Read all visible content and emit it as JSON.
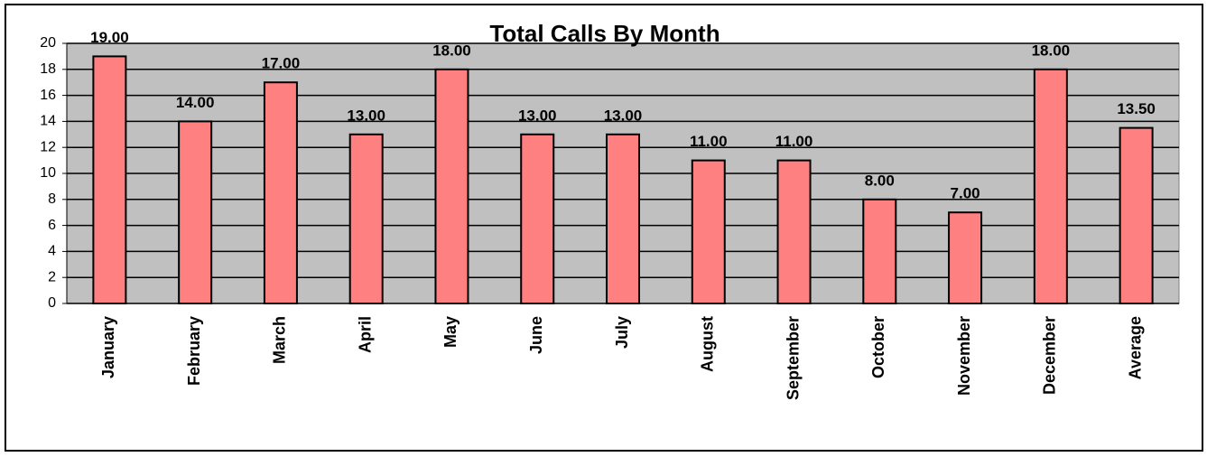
{
  "chart_data": {
    "type": "bar",
    "title": "Total Calls By Month",
    "categories": [
      "January",
      "February",
      "March",
      "April",
      "May",
      "June",
      "July",
      "August",
      "September",
      "October",
      "November",
      "December",
      "Average"
    ],
    "values": [
      19,
      14,
      17,
      13,
      18,
      13,
      13,
      11,
      11,
      8,
      7,
      18,
      13.5
    ],
    "value_labels": [
      "19.00",
      "14.00",
      "17.00",
      "13.00",
      "18.00",
      "13.00",
      "13.00",
      "11.00",
      "11.00",
      "8.00",
      "7.00",
      "18.00",
      "13.50"
    ],
    "color": "#ff8080",
    "plot_background": "#c0c0c0",
    "ylim": [
      0,
      20
    ],
    "yticks": [
      0,
      2,
      4,
      6,
      8,
      10,
      12,
      14,
      16,
      18,
      20
    ],
    "grid": true
  }
}
